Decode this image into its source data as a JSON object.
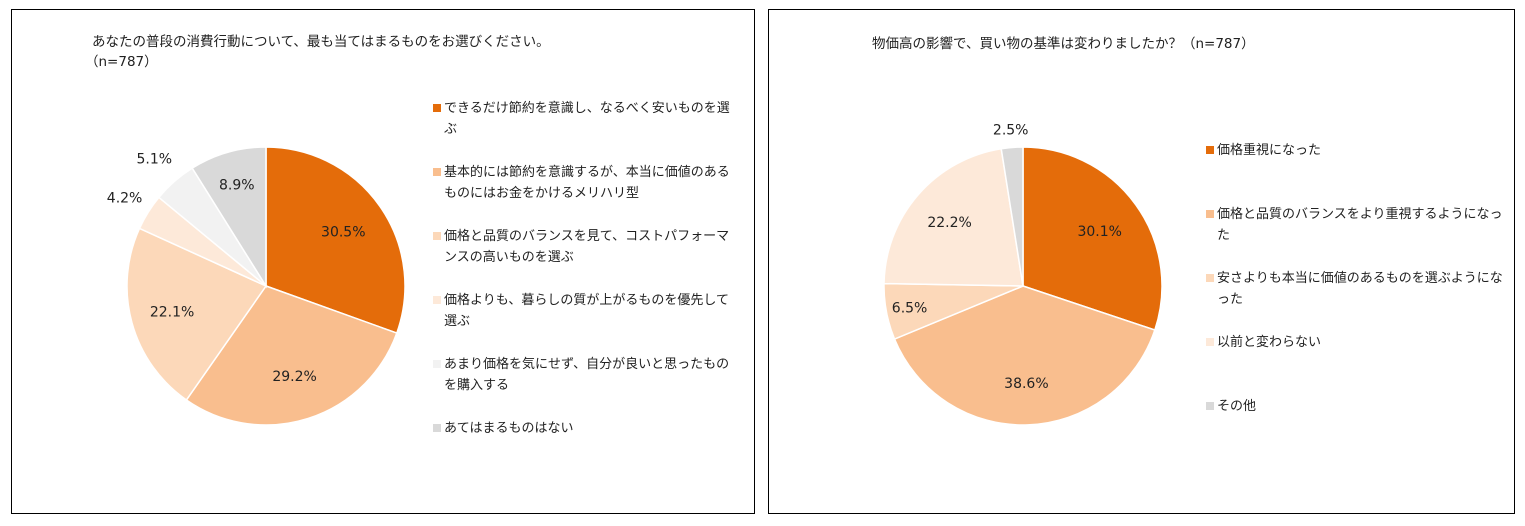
{
  "charts": [
    {
      "title": "あなたの普段の消費行動について、最も当てはまるものをお選びください。",
      "subtitle": "（n=787）",
      "chart_data": {
        "type": "pie",
        "title": "あなたの普段の消費行動について、最も当てはまるものをお選びください。（n=787）",
        "unit": "%",
        "legend_position": "right",
        "series": [
          {
            "name": "できるだけ節約を意識し、なるべく安いものを選ぶ",
            "value": 30.5,
            "label": "30.5%",
            "color": "#E46C0A"
          },
          {
            "name": "基本的には節約を意識するが、本当に価値のあるものにはお金をかけるメリハリ型",
            "value": 29.2,
            "label": "29.2%",
            "color": "#F9BE8E"
          },
          {
            "name": "価格と品質のバランスを見て、コストパフォーマンスの高いものを選ぶ",
            "value": 22.1,
            "label": "22.1%",
            "color": "#FCD8B9"
          },
          {
            "name": "価格よりも、暮らしの質が上がるものを優先して選ぶ",
            "value": 4.2,
            "label": "4.2%",
            "color": "#FDE9D9"
          },
          {
            "name": "あまり価格を気にせず、自分が良いと思ったものを購入する",
            "value": 5.1,
            "label": "5.1%",
            "color": "#F2F2F2"
          },
          {
            "name": "あてはまるものはない",
            "value": 8.9,
            "label": "8.9%",
            "color": "#D9D9D9"
          }
        ]
      }
    },
    {
      "title": "物価高の影響で、買い物の基準は変わりましたか？（n=787）",
      "subtitle": "",
      "chart_data": {
        "type": "pie",
        "title": "物価高の影響で、買い物の基準は変わりましたか？（n=787）",
        "unit": "%",
        "legend_position": "right",
        "series": [
          {
            "name": "価格重視になった",
            "value": 30.1,
            "label": "30.1%",
            "color": "#E46C0A"
          },
          {
            "name": "価格と品質のバランスをより重視するようになった",
            "value": 38.6,
            "label": "38.6%",
            "color": "#F9BE8E"
          },
          {
            "name": "安さよりも本当に価値のあるものを選ぶようになった",
            "value": 6.5,
            "label": "6.5%",
            "color": "#FCD8B9"
          },
          {
            "name": "以前と変わらない",
            "value": 22.2,
            "label": "22.2%",
            "color": "#FDE9D9"
          },
          {
            "name": "その他",
            "value": 2.5,
            "label": "2.5%",
            "color": "#D9D9D9"
          }
        ]
      }
    }
  ]
}
